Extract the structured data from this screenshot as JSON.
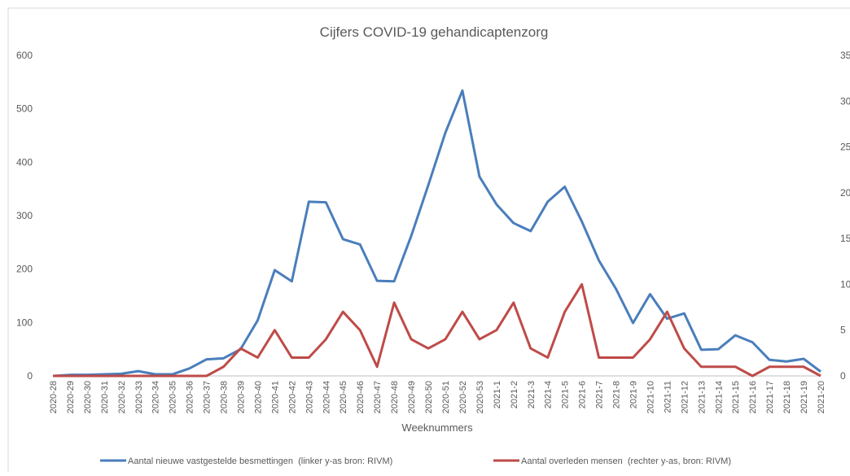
{
  "chart_data": {
    "type": "line",
    "title": "Cijfers COVID-19 gehandicaptenzorg",
    "x_label": "Weeknummers",
    "categories": [
      "2020-28",
      "2020-29",
      "2020-30",
      "2020-31",
      "2020-32",
      "2020-33",
      "2020-34",
      "2020-35",
      "2020-36",
      "2020-37",
      "2020-38",
      "2020-39",
      "2020-40",
      "2020-41",
      "2020-42",
      "2020-43",
      "2020-44",
      "2020-45",
      "2020-46",
      "2020-47",
      "2020-48",
      "2020-49",
      "2020-50",
      "2020-51",
      "2020-52",
      "2020-53",
      "2021-1",
      "2021-2",
      "2021-3",
      "2021-4",
      "2021-5",
      "2021-6",
      "2021-7",
      "2021-8",
      "2021-9",
      "2021-10",
      "2021-11",
      "2021-12",
      "2021-13",
      "2021-14",
      "2021-15",
      "2021-16",
      "2021-17",
      "2021-18",
      "2021-19",
      "2021-20"
    ],
    "series": [
      {
        "name": "Aantal nieuwe vastgestelde besmettingen  (linker y-as bron: RIVM)",
        "color": "#4a7ebb",
        "axis": "y",
        "values": [
          0,
          2,
          2,
          3,
          4,
          9,
          3,
          3,
          14,
          31,
          33,
          50,
          104,
          198,
          177,
          326,
          325,
          256,
          246,
          178,
          177,
          262,
          357,
          455,
          534,
          373,
          321,
          286,
          271,
          326,
          354,
          289,
          216,
          163,
          99,
          153,
          107,
          117,
          49,
          50,
          76,
          63,
          30,
          27,
          32,
          8
        ]
      },
      {
        "name": "Aantal overleden mensen  (rechter y-as, bron: RIVM)",
        "color": "#be4b48",
        "axis": "y2",
        "values": [
          0,
          0,
          0,
          0,
          0,
          0,
          0,
          0,
          0,
          0,
          1,
          3,
          2,
          5,
          2,
          2,
          4,
          7,
          5,
          1,
          8,
          4,
          3,
          4,
          7,
          4,
          5,
          8,
          3,
          2,
          7,
          10,
          2,
          2,
          2,
          4,
          7,
          3,
          1,
          1,
          1,
          0,
          1,
          1,
          1,
          0
        ]
      }
    ],
    "ylim": [
      0,
      600
    ],
    "yticks": [
      0,
      100,
      200,
      300,
      400,
      500,
      600
    ],
    "y2lim": [
      0,
      35
    ],
    "y2ticks": [
      0,
      5,
      10,
      15,
      20,
      25,
      30,
      35
    ],
    "legend": "bottom"
  }
}
